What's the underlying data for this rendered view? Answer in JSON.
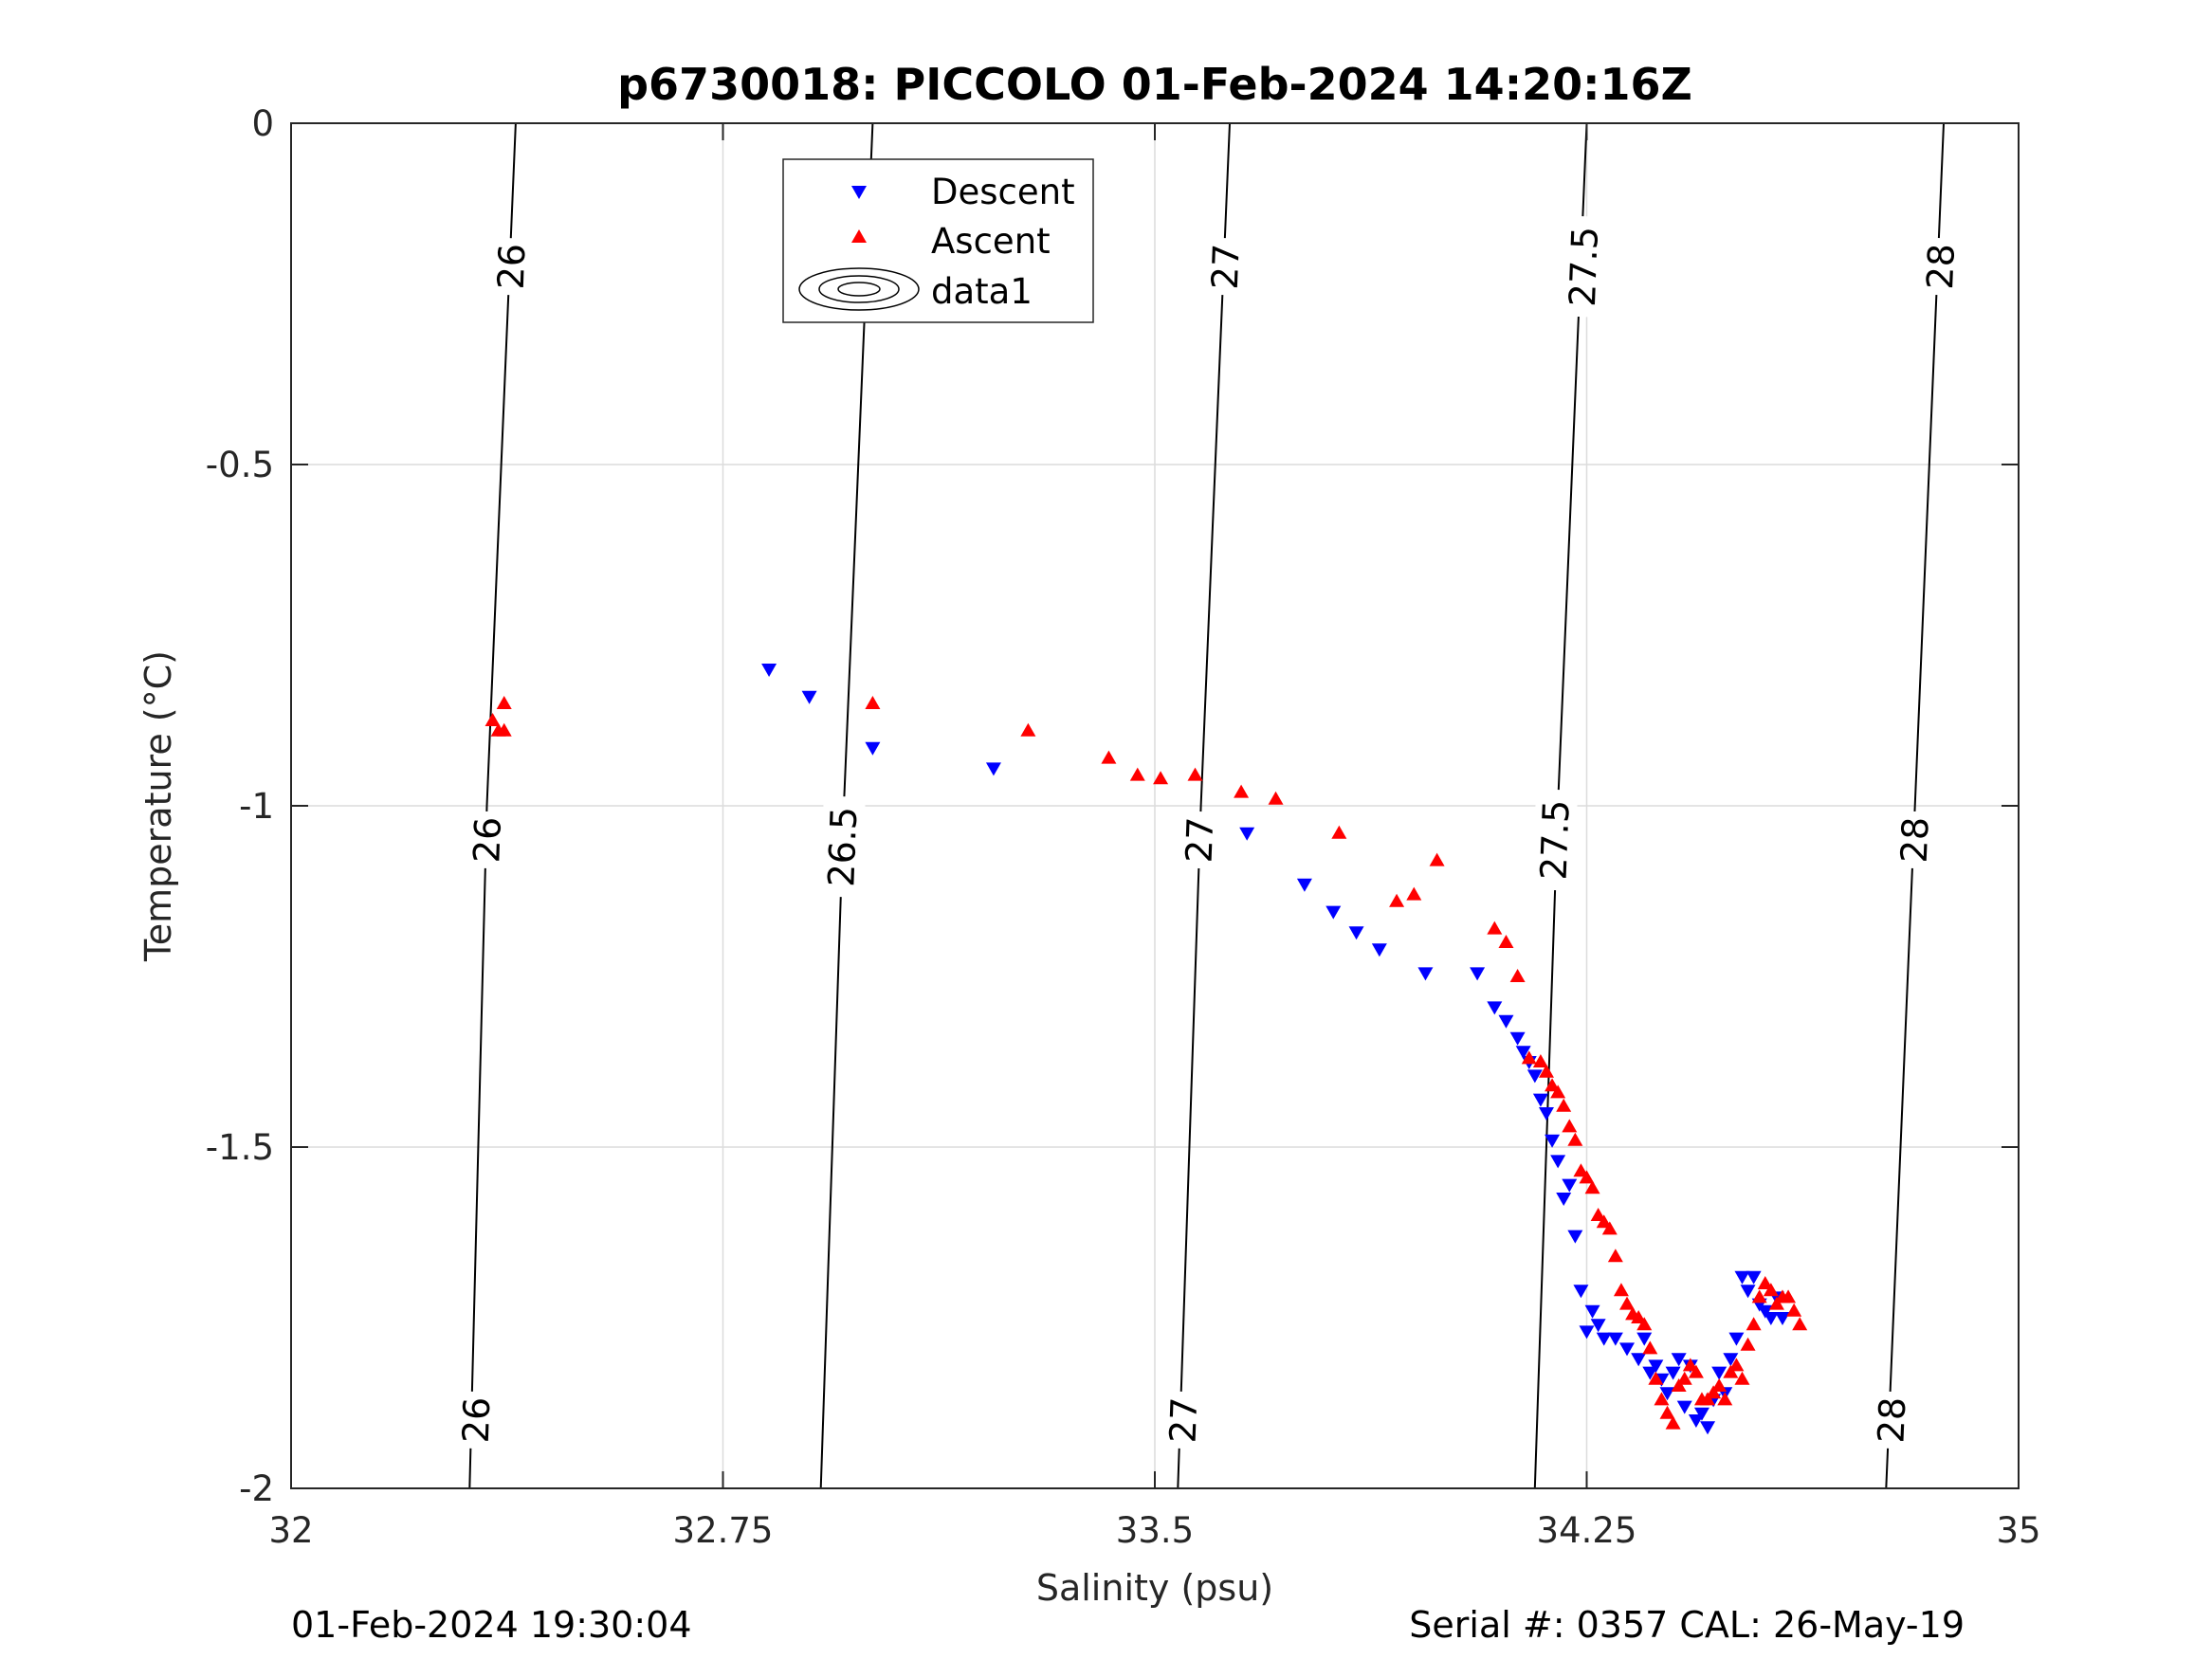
{
  "chart_data": {
    "type": "scatter",
    "title": "p6730018: PICCOLO 01-Feb-2024 14:20:16Z",
    "xlabel": "Salinity (psu)",
    "ylabel": "Temperature (°C)",
    "xlim": [
      32,
      35
    ],
    "ylim": [
      -2,
      0
    ],
    "xticks": [
      "32",
      "32.75",
      "33.5",
      "34.25",
      "35"
    ],
    "yticks": [
      "0",
      "-0.5",
      "-1",
      "-1.5",
      "-2"
    ],
    "grid": true,
    "legend_position": "top-center",
    "legend": [
      "Descent",
      "Ascent",
      "data1"
    ],
    "footer_left": "01-Feb-2024 19:30:04",
    "footer_right": "Serial #: 0357  CAL: 26-May-19",
    "colors": {
      "descent": "#0000ff",
      "ascent": "#ff0000",
      "contour": "#000000",
      "grid": "#dcdcdc"
    },
    "contours": [
      {
        "label": "26",
        "points": [
          [
            32.39,
            0
          ],
          [
            32.36,
            -0.6
          ],
          [
            32.34,
            -1.0
          ],
          [
            32.31,
            -2.0
          ]
        ],
        "label_positions": [
          [
            32.383,
            -0.21
          ],
          [
            32.341,
            -1.05
          ],
          [
            32.322,
            -1.9
          ]
        ]
      },
      {
        "label": "26.5",
        "points": [
          [
            33.01,
            0
          ],
          [
            32.98,
            -0.6
          ],
          [
            32.96,
            -1.0
          ],
          [
            32.92,
            -2.0
          ]
        ],
        "label_positions": [
          [
            33.003,
            -0.19
          ],
          [
            32.958,
            -1.06
          ]
        ]
      },
      {
        "label": "27",
        "points": [
          [
            33.63,
            0
          ],
          [
            33.6,
            -0.6
          ],
          [
            33.58,
            -1.0
          ],
          [
            33.54,
            -2.0
          ]
        ],
        "label_positions": [
          [
            33.623,
            -0.21
          ],
          [
            33.578,
            -1.05
          ],
          [
            33.55,
            -1.9
          ]
        ]
      },
      {
        "label": "27.5",
        "points": [
          [
            34.25,
            0
          ],
          [
            34.22,
            -0.6
          ],
          [
            34.2,
            -1.0
          ],
          [
            34.16,
            -2.0
          ]
        ],
        "label_positions": [
          [
            34.245,
            -0.21
          ],
          [
            34.195,
            -1.05
          ]
        ]
      },
      {
        "label": "28",
        "points": [
          [
            34.87,
            0
          ],
          [
            34.84,
            -0.6
          ],
          [
            34.82,
            -1.0
          ],
          [
            34.77,
            -2.0
          ]
        ],
        "label_positions": [
          [
            34.865,
            -0.21
          ],
          [
            34.82,
            -1.05
          ],
          [
            34.78,
            -1.9
          ]
        ]
      }
    ],
    "series": [
      {
        "name": "Descent",
        "marker": "triangle-down",
        "x": [
          32.83,
          32.9,
          33.01,
          33.22,
          33.66,
          33.76,
          33.81,
          33.85,
          33.89,
          33.97,
          34.06,
          34.09,
          34.11,
          34.13,
          34.14,
          34.15,
          34.16,
          34.17,
          34.18,
          34.19,
          34.2,
          34.21,
          34.22,
          34.23,
          34.24,
          34.25,
          34.26,
          34.27,
          34.28,
          34.3,
          34.32,
          34.34,
          34.35,
          34.36,
          34.37,
          34.38,
          34.39,
          34.4,
          34.41,
          34.42,
          34.43,
          34.44,
          34.45,
          34.46,
          34.47,
          34.48,
          34.49,
          34.5,
          34.51,
          34.52,
          34.53,
          34.54,
          34.55,
          34.56,
          34.57,
          34.58,
          34.59
        ],
        "y": [
          -0.8,
          -0.84,
          -0.915,
          -0.945,
          -1.04,
          -1.115,
          -1.155,
          -1.185,
          -1.21,
          -1.245,
          -1.245,
          -1.295,
          -1.315,
          -1.34,
          -1.36,
          -1.375,
          -1.395,
          -1.43,
          -1.45,
          -1.49,
          -1.52,
          -1.575,
          -1.555,
          -1.63,
          -1.71,
          -1.77,
          -1.74,
          -1.76,
          -1.78,
          -1.78,
          -1.795,
          -1.81,
          -1.78,
          -1.83,
          -1.82,
          -1.84,
          -1.86,
          -1.83,
          -1.81,
          -1.88,
          -1.82,
          -1.9,
          -1.89,
          -1.91,
          -1.87,
          -1.83,
          -1.86,
          -1.81,
          -1.78,
          -1.69,
          -1.71,
          -1.69,
          -1.73,
          -1.74,
          -1.75,
          -1.72,
          -1.75
        ]
      },
      {
        "name": "Ascent",
        "marker": "triangle-up",
        "x": [
          32.35,
          32.37,
          32.37,
          32.36,
          33.01,
          33.28,
          33.42,
          33.47,
          33.51,
          33.57,
          33.65,
          33.71,
          33.82,
          33.92,
          33.95,
          33.99,
          34.09,
          34.11,
          34.13,
          34.15,
          34.17,
          34.18,
          34.19,
          34.2,
          34.21,
          34.22,
          34.23,
          34.24,
          34.25,
          34.26,
          34.27,
          34.28,
          34.29,
          34.3,
          34.31,
          34.32,
          34.33,
          34.34,
          34.35,
          34.36,
          34.37,
          34.38,
          34.39,
          34.4,
          34.41,
          34.42,
          34.43,
          34.44,
          34.45,
          34.46,
          34.47,
          34.48,
          34.49,
          34.5,
          34.51,
          34.52,
          34.53,
          34.54,
          34.55,
          34.56,
          34.57,
          34.58,
          34.59,
          34.6,
          34.61,
          34.62
        ],
        "y": [
          -0.875,
          -0.85,
          -0.89,
          -0.89,
          -0.85,
          -0.89,
          -0.93,
          -0.955,
          -0.96,
          -0.955,
          -0.98,
          -0.99,
          -1.04,
          -1.14,
          -1.13,
          -1.08,
          -1.18,
          -1.2,
          -1.25,
          -1.37,
          -1.375,
          -1.39,
          -1.41,
          -1.42,
          -1.44,
          -1.47,
          -1.49,
          -1.535,
          -1.545,
          -1.56,
          -1.6,
          -1.61,
          -1.62,
          -1.66,
          -1.71,
          -1.73,
          -1.745,
          -1.75,
          -1.76,
          -1.795,
          -1.84,
          -1.87,
          -1.89,
          -1.905,
          -1.85,
          -1.84,
          -1.82,
          -1.83,
          -1.87,
          -1.87,
          -1.86,
          -1.85,
          -1.87,
          -1.83,
          -1.82,
          -1.84,
          -1.79,
          -1.76,
          -1.72,
          -1.7,
          -1.71,
          -1.73,
          -1.72,
          -1.72,
          -1.74,
          -1.76
        ]
      }
    ]
  }
}
